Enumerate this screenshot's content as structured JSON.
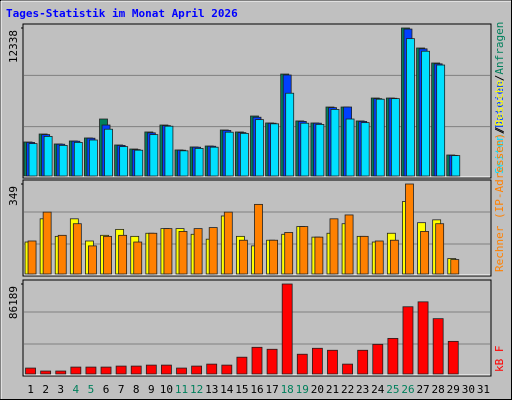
{
  "chart_data": {
    "type": "bar",
    "title": "Tages-Statistik im Monat April 2026",
    "categories": [
      "1",
      "2",
      "3",
      "4",
      "5",
      "6",
      "7",
      "8",
      "9",
      "10",
      "11",
      "12",
      "13",
      "14",
      "15",
      "16",
      "17",
      "18",
      "19",
      "20",
      "21",
      "22",
      "23",
      "24",
      "25",
      "26",
      "27",
      "28",
      "29",
      "30",
      "31"
    ],
    "highlight": {
      "color": "#00805c",
      "categories": [
        "4",
        "5",
        "11",
        "12",
        "18",
        "19",
        "25",
        "26"
      ]
    },
    "legend_separator": "/",
    "grid": true,
    "panels": [
      {
        "ylim": [
          0,
          12338
        ],
        "yticks": [
          12338
        ],
        "series": [
          {
            "name": "Anfragen",
            "color": "#00805c",
            "values": [
              2835,
              3500,
              2670,
              2920,
              3170,
              4750,
              2585,
              2250,
              3670,
              4250,
              2170,
              2420,
              2500,
              3835,
              3670,
              5000,
              4420,
              8500,
              4590,
              4420,
              5750,
              5750,
              4590,
              6500,
              6500,
              12338,
              10670,
              9420,
              1750,
              null,
              null
            ]
          },
          {
            "name": "Dateien",
            "color": "#0040ff",
            "values": [
              2800,
              3450,
              2650,
              2900,
              3150,
              4250,
              2550,
              2200,
              3600,
              4200,
              2150,
              2400,
              2480,
              3800,
              3620,
              4900,
              4400,
              8420,
              4550,
              4400,
              5700,
              5750,
              4550,
              6450,
              6480,
              12250,
              10600,
              9350,
              1720,
              null,
              null
            ]
          },
          {
            "name": "Seiten",
            "color": "#00e0ff",
            "values": [
              2700,
              3300,
              2550,
              2800,
              3000,
              3900,
              2450,
              2150,
              3450,
              4150,
              2100,
              2300,
              2400,
              3650,
              3550,
              4700,
              4350,
              6900,
              4400,
              4300,
              5550,
              4750,
              4450,
              6400,
              6450,
              11450,
              10400,
              9250,
              1700,
              null,
              null
            ]
          }
        ]
      },
      {
        "ylim": [
          0,
          349
        ],
        "yticks": [
          349
        ],
        "series": [
          {
            "name": "Besuche",
            "color": "#ffff00",
            "values": [
              124,
              214,
              146,
              214,
              128,
              150,
              173,
              146,
              158,
              176,
              176,
              154,
              135,
              225,
              146,
              109,
              131,
              154,
              184,
              143,
              158,
              195,
              146,
              124,
              158,
              281,
              199,
              210,
              60,
              null,
              null
            ]
          },
          {
            "name": "Rechner (IP-Adressen)",
            "color": "#ff8000",
            "values": [
              128,
              240,
              150,
              195,
              109,
              146,
              150,
              124,
              158,
              176,
              165,
              176,
              180,
              240,
              131,
              270,
              131,
              161,
              184,
              143,
              214,
              229,
              146,
              128,
              131,
              349,
              165,
              195,
              56,
              null,
              null
            ]
          }
        ]
      },
      {
        "ylim": [
          0,
          86189
        ],
        "yticks": [
          86189
        ],
        "series": [
          {
            "name": "kB F",
            "color": "#ff0000",
            "values": [
              5680,
              2840,
              2840,
              6630,
              6630,
              6630,
              7580,
              7580,
              8520,
              8520,
              5680,
              7580,
              9470,
              8520,
              16100,
              25570,
              23680,
              86189,
              18940,
              24620,
              22730,
              9470,
              22730,
              28400,
              34100,
              64400,
              69100,
              53000,
              31250,
              null,
              null
            ]
          }
        ]
      }
    ]
  }
}
